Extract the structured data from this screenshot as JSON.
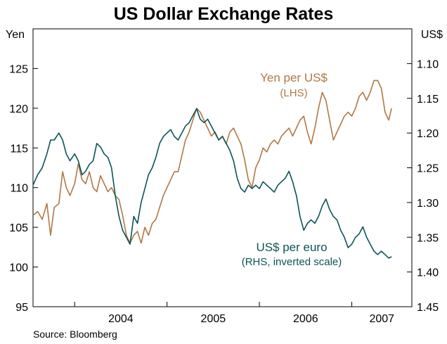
{
  "chart_data": {
    "type": "line",
    "title": "US Dollar Exchange Rates",
    "left_axis": {
      "label": "Yen",
      "min": 95,
      "max": 130,
      "ticks": [
        95,
        100,
        105,
        110,
        115,
        120,
        125
      ]
    },
    "right_axis": {
      "label": "US$",
      "min": 1.05,
      "max": 1.45,
      "inverted": true,
      "ticks": [
        1.1,
        1.15,
        1.2,
        1.25,
        1.3,
        1.35,
        1.4,
        1.45
      ],
      "tick_labels": [
        "1.10",
        "1.15",
        "1.20",
        "1.25",
        "1.30",
        "1.35",
        "1.40",
        "1.45"
      ]
    },
    "x_axis": {
      "start": 2003.55,
      "end": 2007.65,
      "year_dividers": [
        2004,
        2005,
        2006,
        2007
      ],
      "year_labels": [
        "2004",
        "2005",
        "2006",
        "2007"
      ]
    },
    "grid": false,
    "colors": {
      "yen": "#b07845",
      "euro": "#0b5459"
    },
    "annotations": {
      "yen": [
        "Yen per US$",
        "(LHS)"
      ],
      "euro": [
        "US$ per euro",
        "(RHS, inverted scale)"
      ]
    },
    "source": "Source: Bloomberg",
    "series": [
      {
        "key": "yen",
        "axis": "left",
        "points": [
          [
            2003.55,
            106.5
          ],
          [
            2003.6,
            107.0
          ],
          [
            2003.65,
            106.0
          ],
          [
            2003.7,
            108.0
          ],
          [
            2003.74,
            104.0
          ],
          [
            2003.78,
            107.5
          ],
          [
            2003.83,
            108.0
          ],
          [
            2003.87,
            112.0
          ],
          [
            2003.91,
            110.0
          ],
          [
            2003.95,
            109.0
          ],
          [
            2004.0,
            110.5
          ],
          [
            2004.04,
            113.0
          ],
          [
            2004.08,
            111.0
          ],
          [
            2004.12,
            110.5
          ],
          [
            2004.16,
            112.0
          ],
          [
            2004.2,
            110.0
          ],
          [
            2004.24,
            109.5
          ],
          [
            2004.28,
            111.5
          ],
          [
            2004.32,
            110.5
          ],
          [
            2004.36,
            109.5
          ],
          [
            2004.4,
            110.0
          ],
          [
            2004.44,
            109.0
          ],
          [
            2004.48,
            108.5
          ],
          [
            2004.52,
            106.5
          ],
          [
            2004.56,
            104.0
          ],
          [
            2004.6,
            103.0
          ],
          [
            2004.64,
            104.0
          ],
          [
            2004.68,
            104.5
          ],
          [
            2004.72,
            103.0
          ],
          [
            2004.76,
            105.0
          ],
          [
            2004.8,
            104.0
          ],
          [
            2004.84,
            105.5
          ],
          [
            2004.88,
            106.0
          ],
          [
            2004.92,
            107.5
          ],
          [
            2004.96,
            109.0
          ],
          [
            2005.0,
            110.0
          ],
          [
            2005.04,
            111.0
          ],
          [
            2005.08,
            112.0
          ],
          [
            2005.12,
            112.0
          ],
          [
            2005.16,
            114.0
          ],
          [
            2005.2,
            116.0
          ],
          [
            2005.24,
            117.0
          ],
          [
            2005.28,
            118.5
          ],
          [
            2005.32,
            120.0
          ],
          [
            2005.36,
            119.5
          ],
          [
            2005.4,
            118.5
          ],
          [
            2005.44,
            117.5
          ],
          [
            2005.48,
            116.5
          ],
          [
            2005.52,
            117.0
          ],
          [
            2005.56,
            116.0
          ],
          [
            2005.6,
            116.5
          ],
          [
            2005.64,
            115.5
          ],
          [
            2005.68,
            117.0
          ],
          [
            2005.72,
            117.5
          ],
          [
            2005.76,
            116.5
          ],
          [
            2005.8,
            115.5
          ],
          [
            2005.84,
            113.5
          ],
          [
            2005.88,
            111.0
          ],
          [
            2005.92,
            110.0
          ],
          [
            2005.96,
            112.5
          ],
          [
            2006.0,
            113.5
          ],
          [
            2006.04,
            115.0
          ],
          [
            2006.08,
            114.5
          ],
          [
            2006.12,
            115.5
          ],
          [
            2006.16,
            116.0
          ],
          [
            2006.2,
            115.5
          ],
          [
            2006.24,
            116.5
          ],
          [
            2006.28,
            117.0
          ],
          [
            2006.32,
            117.5
          ],
          [
            2006.36,
            116.5
          ],
          [
            2006.4,
            117.5
          ],
          [
            2006.44,
            118.5
          ],
          [
            2006.48,
            119.0
          ],
          [
            2006.52,
            117.0
          ],
          [
            2006.56,
            115.5
          ],
          [
            2006.6,
            117.5
          ],
          [
            2006.64,
            120.0
          ],
          [
            2006.68,
            122.0
          ],
          [
            2006.72,
            121.0
          ],
          [
            2006.76,
            118.5
          ],
          [
            2006.8,
            116.0
          ],
          [
            2006.84,
            117.0
          ],
          [
            2006.88,
            118.0
          ],
          [
            2006.92,
            119.0
          ],
          [
            2006.96,
            119.5
          ],
          [
            2007.0,
            119.0
          ],
          [
            2007.04,
            120.0
          ],
          [
            2007.08,
            121.5
          ],
          [
            2007.12,
            122.0
          ],
          [
            2007.16,
            121.0
          ],
          [
            2007.2,
            122.0
          ],
          [
            2007.24,
            123.5
          ],
          [
            2007.28,
            123.5
          ],
          [
            2007.32,
            122.5
          ],
          [
            2007.36,
            119.5
          ],
          [
            2007.4,
            118.5
          ],
          [
            2007.43,
            120.0
          ]
        ]
      },
      {
        "key": "euro",
        "axis": "right",
        "points": [
          [
            2003.55,
            1.275
          ],
          [
            2003.6,
            1.26
          ],
          [
            2003.65,
            1.25
          ],
          [
            2003.7,
            1.23
          ],
          [
            2003.74,
            1.21
          ],
          [
            2003.78,
            1.21
          ],
          [
            2003.83,
            1.2
          ],
          [
            2003.87,
            1.21
          ],
          [
            2003.91,
            1.23
          ],
          [
            2003.95,
            1.24
          ],
          [
            2004.0,
            1.23
          ],
          [
            2004.04,
            1.24
          ],
          [
            2004.08,
            1.26
          ],
          [
            2004.12,
            1.255
          ],
          [
            2004.16,
            1.245
          ],
          [
            2004.2,
            1.24
          ],
          [
            2004.24,
            1.215
          ],
          [
            2004.28,
            1.22
          ],
          [
            2004.32,
            1.23
          ],
          [
            2004.36,
            1.235
          ],
          [
            2004.4,
            1.25
          ],
          [
            2004.44,
            1.29
          ],
          [
            2004.48,
            1.32
          ],
          [
            2004.52,
            1.34
          ],
          [
            2004.56,
            1.35
          ],
          [
            2004.6,
            1.36
          ],
          [
            2004.64,
            1.32
          ],
          [
            2004.68,
            1.33
          ],
          [
            2004.72,
            1.3
          ],
          [
            2004.76,
            1.28
          ],
          [
            2004.8,
            1.26
          ],
          [
            2004.84,
            1.25
          ],
          [
            2004.88,
            1.235
          ],
          [
            2004.92,
            1.215
          ],
          [
            2004.96,
            1.205
          ],
          [
            2005.0,
            1.2
          ],
          [
            2005.04,
            1.195
          ],
          [
            2005.08,
            1.205
          ],
          [
            2005.12,
            1.21
          ],
          [
            2005.16,
            1.2
          ],
          [
            2005.2,
            1.19
          ],
          [
            2005.24,
            1.185
          ],
          [
            2005.28,
            1.175
          ],
          [
            2005.32,
            1.165
          ],
          [
            2005.36,
            1.18
          ],
          [
            2005.4,
            1.185
          ],
          [
            2005.44,
            1.18
          ],
          [
            2005.48,
            1.19
          ],
          [
            2005.52,
            1.2
          ],
          [
            2005.56,
            1.21
          ],
          [
            2005.6,
            1.205
          ],
          [
            2005.64,
            1.215
          ],
          [
            2005.68,
            1.225
          ],
          [
            2005.72,
            1.24
          ],
          [
            2005.76,
            1.265
          ],
          [
            2005.8,
            1.28
          ],
          [
            2005.84,
            1.285
          ],
          [
            2005.88,
            1.275
          ],
          [
            2005.92,
            1.28
          ],
          [
            2005.96,
            1.275
          ],
          [
            2006.0,
            1.28
          ],
          [
            2006.04,
            1.27
          ],
          [
            2006.08,
            1.275
          ],
          [
            2006.12,
            1.28
          ],
          [
            2006.16,
            1.285
          ],
          [
            2006.2,
            1.275
          ],
          [
            2006.24,
            1.27
          ],
          [
            2006.28,
            1.265
          ],
          [
            2006.32,
            1.255
          ],
          [
            2006.36,
            1.27
          ],
          [
            2006.4,
            1.29
          ],
          [
            2006.44,
            1.32
          ],
          [
            2006.48,
            1.34
          ],
          [
            2006.52,
            1.33
          ],
          [
            2006.56,
            1.325
          ],
          [
            2006.6,
            1.33
          ],
          [
            2006.64,
            1.32
          ],
          [
            2006.68,
            1.305
          ],
          [
            2006.72,
            1.295
          ],
          [
            2006.76,
            1.31
          ],
          [
            2006.8,
            1.32
          ],
          [
            2006.84,
            1.325
          ],
          [
            2006.88,
            1.34
          ],
          [
            2006.92,
            1.35
          ],
          [
            2006.96,
            1.365
          ],
          [
            2007.0,
            1.36
          ],
          [
            2007.04,
            1.35
          ],
          [
            2007.08,
            1.345
          ],
          [
            2007.12,
            1.335
          ],
          [
            2007.16,
            1.35
          ],
          [
            2007.2,
            1.36
          ],
          [
            2007.24,
            1.37
          ],
          [
            2007.28,
            1.375
          ],
          [
            2007.32,
            1.37
          ],
          [
            2007.36,
            1.375
          ],
          [
            2007.4,
            1.38
          ],
          [
            2007.43,
            1.378
          ]
        ]
      }
    ]
  }
}
